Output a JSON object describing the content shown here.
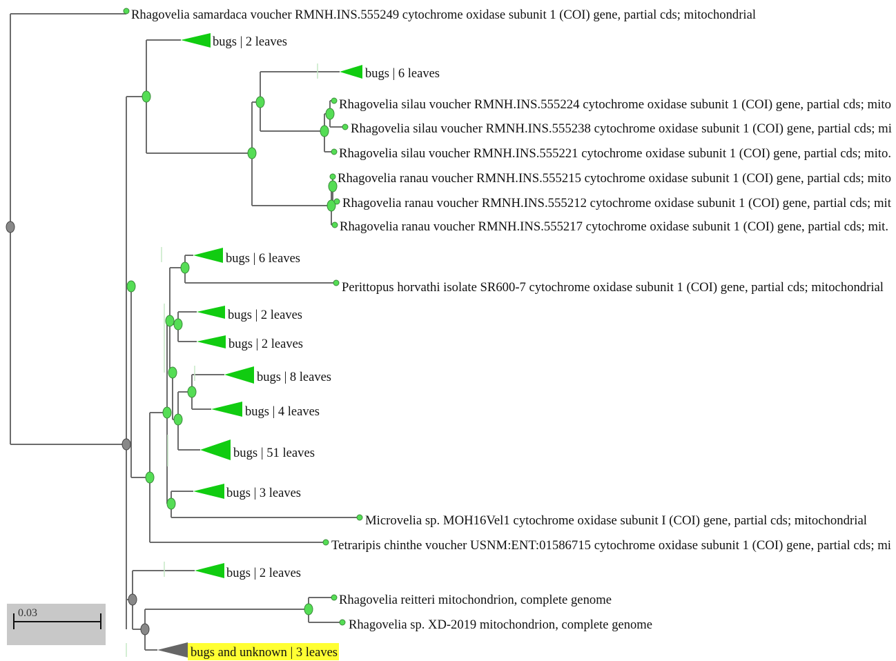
{
  "colors": {
    "branch": "#6b6b6b",
    "node_green": "#55dd55",
    "node_grey": "#888888",
    "clade_green": "#11cc11",
    "clade_grey": "#666666",
    "highlight": "#ffff33"
  },
  "scale_bar": {
    "value": "0.03"
  },
  "taxa": [
    "Rhagovelia samardaca voucher RMNH.INS.555249 cytochrome oxidase subunit 1 (COI) gene, partial cds; mitochondrial",
    "bugs | 2 leaves",
    "bugs | 6 leaves",
    "Rhagovelia silau voucher RMNH.INS.555224 cytochrome oxidase subunit 1 (COI) gene, partial cds; mito",
    "Rhagovelia silau voucher RMNH.INS.555238 cytochrome oxidase subunit 1 (COI) gene, partial cds; mi",
    "Rhagovelia silau voucher RMNH.INS.555221 cytochrome oxidase subunit 1 (COI) gene, partial cds; mito.",
    "Rhagovelia ranau voucher RMNH.INS.555215 cytochrome oxidase subunit 1 (COI) gene, partial cds; mito",
    "Rhagovelia ranau voucher RMNH.INS.555212 cytochrome oxidase subunit 1 (COI) gene, partial cds; mit",
    "Rhagovelia ranau voucher RMNH.INS.555217 cytochrome oxidase subunit 1 (COI) gene, partial cds; mit.",
    "bugs | 6 leaves",
    "Perittopus horvathi isolate SR600-7 cytochrome oxidase subunit 1 (COI) gene, partial cds; mitochondrial",
    "bugs | 2 leaves",
    "bugs | 2 leaves",
    "bugs | 8 leaves",
    "bugs | 4 leaves",
    "bugs | 51 leaves",
    "bugs | 3 leaves",
    "Microvelia sp. MOH16Vel1 cytochrome oxidase subunit I (COI) gene, partial cds; mitochondrial",
    "Tetraripis chinthe voucher USNM:ENT:01586715 cytochrome oxidase subunit 1 (COI) gene, partial cds; mi",
    "bugs | 2 leaves",
    "Rhagovelia reitteri mitochondrion, complete genome",
    "Rhagovelia sp. XD-2019 mitochondrion, complete genome",
    "bugs and unknown | 3 leaves"
  ]
}
